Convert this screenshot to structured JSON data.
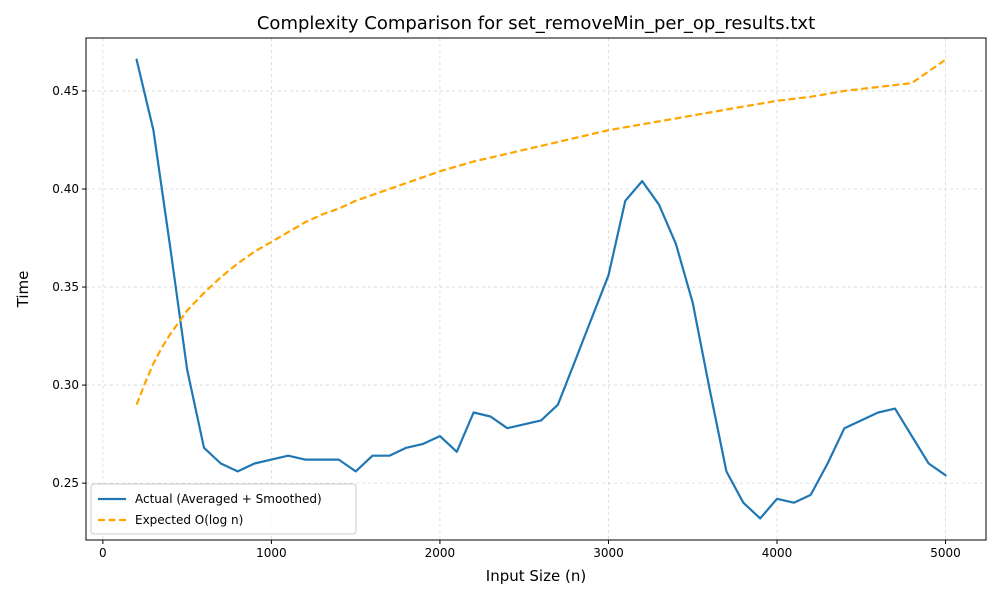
{
  "chart_data": {
    "type": "line",
    "title": "Complexity Comparison for set_removeMin_per_op_results.txt",
    "xlabel": "Input Size (n)",
    "ylabel": "Time",
    "xlim": [
      -100,
      5240
    ],
    "ylim": [
      0.221,
      0.477
    ],
    "xticks": [
      0,
      1000,
      2000,
      3000,
      4000,
      5000
    ],
    "yticks": [
      0.25,
      0.3,
      0.35,
      0.4,
      0.45
    ],
    "grid": true,
    "legend_position": "lower-left",
    "series": [
      {
        "name": "Actual (Averaged + Smoothed)",
        "color": "#1f77b4",
        "style": "solid",
        "x": [
          200,
          300,
          400,
          500,
          600,
          700,
          800,
          900,
          1000,
          1100,
          1200,
          1300,
          1400,
          1500,
          1600,
          1700,
          1800,
          1900,
          2000,
          2100,
          2200,
          2300,
          2400,
          2500,
          2600,
          2700,
          2800,
          2900,
          3000,
          3100,
          3200,
          3300,
          3400,
          3500,
          3600,
          3700,
          3800,
          3900,
          4000,
          4100,
          4200,
          4300,
          4400,
          4500,
          4600,
          4700,
          4800,
          4900,
          5000
        ],
        "y": [
          0.466,
          0.43,
          0.37,
          0.308,
          0.268,
          0.26,
          0.256,
          0.26,
          0.262,
          0.264,
          0.262,
          0.262,
          0.262,
          0.256,
          0.264,
          0.264,
          0.268,
          0.27,
          0.274,
          0.266,
          0.286,
          0.284,
          0.278,
          0.28,
          0.282,
          0.29,
          0.312,
          0.334,
          0.356,
          0.394,
          0.404,
          0.392,
          0.372,
          0.342,
          0.298,
          0.256,
          0.24,
          0.232,
          0.242,
          0.24,
          0.244,
          0.26,
          0.278,
          0.282,
          0.286,
          0.288,
          0.274,
          0.26,
          0.254
        ]
      },
      {
        "name": "Expected O(log n)",
        "color": "#ffa500",
        "style": "dashed",
        "x": [
          200,
          250,
          300,
          350,
          400,
          450,
          500,
          600,
          700,
          800,
          900,
          1000,
          1100,
          1200,
          1300,
          1400,
          1500,
          1600,
          1700,
          1800,
          1900,
          2000,
          2200,
          2400,
          2600,
          2800,
          3000,
          3200,
          3400,
          3600,
          3800,
          4000,
          4200,
          4400,
          4600,
          4800,
          5000
        ],
        "y": [
          0.29,
          0.301,
          0.311,
          0.319,
          0.326,
          0.332,
          0.338,
          0.347,
          0.355,
          0.362,
          0.368,
          0.373,
          0.378,
          0.383,
          0.387,
          0.39,
          0.394,
          0.397,
          0.4,
          0.403,
          0.406,
          0.409,
          0.414,
          0.418,
          0.422,
          0.426,
          0.43,
          0.433,
          0.436,
          0.439,
          0.442,
          0.445,
          0.447,
          0.45,
          0.452,
          0.454,
          0.466
        ]
      }
    ]
  }
}
